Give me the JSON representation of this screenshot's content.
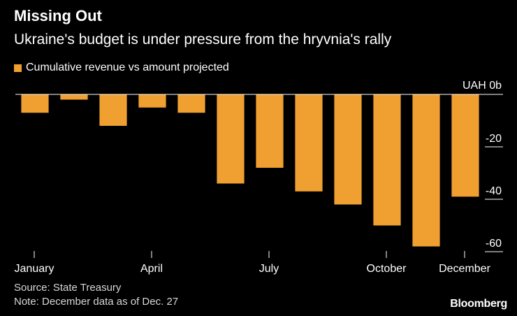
{
  "title": "Missing Out",
  "subtitle": "Ukraine's budget is under pressure from the hryvnia's rally",
  "legend": {
    "label": "Cumulative revenue vs amount projected",
    "color": "#f0a030"
  },
  "footer": {
    "source": "Source: State Treasury",
    "note": "Note: December data as of Dec. 27"
  },
  "logo": "Bloomberg",
  "chart_data": {
    "type": "bar",
    "categories": [
      "Jan",
      "Feb",
      "Mar",
      "Apr",
      "May",
      "Jun",
      "Jul",
      "Aug",
      "Sep",
      "Oct",
      "Nov",
      "Dec"
    ],
    "values": [
      -7,
      -2,
      -12,
      -5,
      -7,
      -34,
      -28,
      -37,
      -42,
      -50,
      -58,
      -39
    ],
    "series": [
      {
        "name": "Cumulative revenue vs amount projected",
        "values": [
          -7,
          -2,
          -12,
          -5,
          -7,
          -34,
          -28,
          -37,
          -42,
          -50,
          -58,
          -39
        ]
      }
    ],
    "ylim": [
      -58,
      0
    ],
    "yticks": [
      {
        "value": 0,
        "label": "UAH 0b"
      },
      {
        "value": -20,
        "label": "-20"
      },
      {
        "value": -40,
        "label": "-40"
      },
      {
        "value": -60,
        "label": "-60"
      }
    ],
    "xticks": [
      {
        "category": "Jan",
        "label": "January"
      },
      {
        "category": "Apr",
        "label": "April"
      },
      {
        "category": "Jul",
        "label": "July"
      },
      {
        "category": "Oct",
        "label": "October"
      },
      {
        "category": "Dec",
        "label": "December"
      }
    ],
    "grid": false,
    "bar_color": "#f0a030",
    "zero_line_color": "#ffffff",
    "axis_color": "#ffffff"
  }
}
